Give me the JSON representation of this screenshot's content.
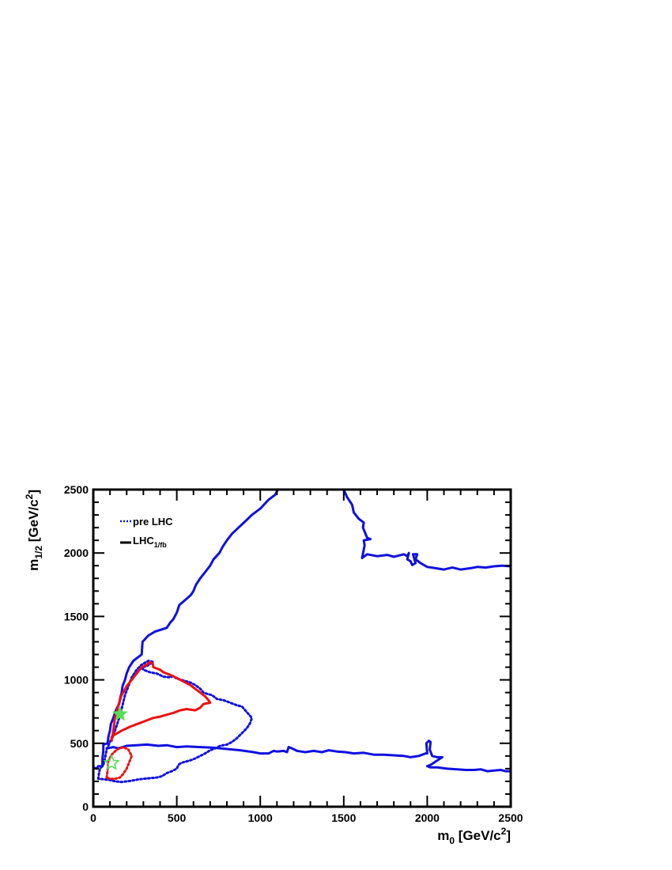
{
  "chart_data": {
    "type": "line",
    "xlabel": {
      "main": "m",
      "sub": "0",
      "unit": " [GeV/c",
      "sup": "2",
      "close": "]"
    },
    "ylabel": {
      "main": "m",
      "sub": "1/2",
      "unit": " [GeV/c",
      "sup": "2",
      "close": "]"
    },
    "xlim": [
      0,
      2500
    ],
    "ylim": [
      0,
      2500
    ],
    "xticks": [
      0,
      500,
      1000,
      1500,
      2000,
      2500
    ],
    "yticks": [
      0,
      500,
      1000,
      1500,
      2000,
      2500
    ],
    "grid": false,
    "legend_position": "top-left",
    "legend": [
      {
        "label_main": "pre LHC",
        "label_sub": "",
        "style": "dotted"
      },
      {
        "label_main": "LHC",
        "label_sub": "1/fb",
        "style": "solid"
      }
    ],
    "colors": {
      "blue": "#1010e0",
      "red": "#ee1010",
      "green": "#55dd55",
      "frame": "#000000"
    },
    "series": [
      {
        "style": "solid",
        "color": "#1010e0",
        "points": [
          [
            0,
            310
          ],
          [
            20,
            300
          ],
          [
            30,
            320
          ],
          [
            55,
            320
          ],
          [
            55,
            380
          ],
          [
            60,
            440
          ],
          [
            60,
            490
          ],
          [
            85,
            500
          ],
          [
            92,
            560
          ],
          [
            100,
            600
          ],
          [
            105,
            650
          ],
          [
            120,
            700
          ],
          [
            135,
            760
          ],
          [
            155,
            810
          ],
          [
            160,
            850
          ],
          [
            170,
            900
          ],
          [
            175,
            950
          ],
          [
            190,
            1000
          ],
          [
            200,
            1050
          ],
          [
            215,
            1100
          ],
          [
            240,
            1150
          ],
          [
            270,
            1180
          ],
          [
            290,
            1200
          ],
          [
            295,
            1300
          ],
          [
            330,
            1350
          ],
          [
            370,
            1380
          ],
          [
            440,
            1410
          ],
          [
            460,
            1450
          ],
          [
            480,
            1480
          ],
          [
            500,
            1530
          ],
          [
            515,
            1590
          ],
          [
            560,
            1640
          ],
          [
            585,
            1670
          ],
          [
            600,
            1700
          ],
          [
            615,
            1750
          ],
          [
            640,
            1800
          ],
          [
            670,
            1850
          ],
          [
            700,
            1900
          ],
          [
            720,
            1950
          ],
          [
            755,
            2000
          ],
          [
            775,
            2050
          ],
          [
            800,
            2100
          ],
          [
            830,
            2150
          ],
          [
            870,
            2200
          ],
          [
            910,
            2250
          ],
          [
            950,
            2300
          ],
          [
            1000,
            2350
          ],
          [
            1050,
            2420
          ],
          [
            1090,
            2460
          ],
          [
            1105,
            2500
          ]
        ]
      },
      {
        "style": "solid",
        "color": "#1010e0",
        "points": [
          [
            1500,
            2500
          ],
          [
            1520,
            2440
          ],
          [
            1550,
            2380
          ],
          [
            1560,
            2320
          ],
          [
            1590,
            2270
          ],
          [
            1620,
            2240
          ],
          [
            1615,
            2200
          ],
          [
            1640,
            2120
          ],
          [
            1660,
            2110
          ],
          [
            1620,
            2100
          ],
          [
            1625,
            2060
          ],
          [
            1610,
            1960
          ],
          [
            1640,
            1990
          ],
          [
            1700,
            1975
          ],
          [
            1760,
            1985
          ],
          [
            1800,
            1970
          ],
          [
            1860,
            1990
          ],
          [
            1880,
            1975
          ],
          [
            1890,
            2000
          ],
          [
            1880,
            1950
          ],
          [
            1900,
            1935
          ],
          [
            1910,
            1905
          ],
          [
            1930,
            1920
          ],
          [
            1915,
            1990
          ],
          [
            1940,
            1990
          ],
          [
            1930,
            1950
          ],
          [
            1960,
            1920
          ],
          [
            2000,
            1890
          ],
          [
            2050,
            1880
          ],
          [
            2100,
            1870
          ],
          [
            2150,
            1885
          ],
          [
            2200,
            1870
          ],
          [
            2260,
            1880
          ],
          [
            2300,
            1890
          ],
          [
            2350,
            1885
          ],
          [
            2400,
            1895
          ],
          [
            2450,
            1900
          ],
          [
            2500,
            1895
          ]
        ]
      },
      {
        "style": "solid",
        "color": "#1010e0",
        "points": [
          [
            80,
            460
          ],
          [
            120,
            470
          ],
          [
            150,
            460
          ],
          [
            200,
            480
          ],
          [
            260,
            485
          ],
          [
            320,
            490
          ],
          [
            390,
            480
          ],
          [
            440,
            485
          ],
          [
            500,
            470
          ],
          [
            560,
            475
          ],
          [
            640,
            470
          ],
          [
            720,
            465
          ],
          [
            800,
            455
          ],
          [
            880,
            445
          ],
          [
            960,
            430
          ],
          [
            1000,
            420
          ],
          [
            1050,
            420
          ],
          [
            1080,
            440
          ],
          [
            1100,
            435
          ],
          [
            1140,
            440
          ],
          [
            1160,
            430
          ],
          [
            1170,
            470
          ],
          [
            1190,
            460
          ],
          [
            1220,
            440
          ],
          [
            1270,
            430
          ],
          [
            1320,
            440
          ],
          [
            1370,
            430
          ],
          [
            1410,
            445
          ],
          [
            1460,
            435
          ],
          [
            1510,
            430
          ],
          [
            1560,
            420
          ],
          [
            1620,
            425
          ],
          [
            1680,
            410
          ],
          [
            1740,
            410
          ],
          [
            1800,
            405
          ],
          [
            1860,
            400
          ],
          [
            1900,
            390
          ],
          [
            1950,
            400
          ],
          [
            1990,
            420
          ],
          [
            2000,
            420
          ],
          [
            1995,
            500
          ],
          [
            2010,
            520
          ],
          [
            2020,
            510
          ],
          [
            2015,
            450
          ],
          [
            2030,
            400
          ],
          [
            2060,
            390
          ],
          [
            2090,
            390
          ],
          [
            2020,
            330
          ],
          [
            2000,
            320
          ],
          [
            2020,
            310
          ],
          [
            2060,
            310
          ],
          [
            2120,
            300
          ],
          [
            2180,
            295
          ],
          [
            2230,
            290
          ],
          [
            2280,
            290
          ],
          [
            2320,
            295
          ],
          [
            2360,
            280
          ],
          [
            2400,
            285
          ],
          [
            2440,
            290
          ],
          [
            2470,
            280
          ],
          [
            2500,
            280
          ]
        ]
      },
      {
        "style": "dotted",
        "color": "#1010e0",
        "points": [
          [
            30,
            220
          ],
          [
            35,
            270
          ],
          [
            40,
            300
          ],
          [
            60,
            330
          ],
          [
            70,
            380
          ],
          [
            80,
            450
          ],
          [
            100,
            510
          ],
          [
            120,
            560
          ],
          [
            140,
            640
          ],
          [
            160,
            720
          ],
          [
            175,
            800
          ],
          [
            190,
            880
          ],
          [
            210,
            950
          ],
          [
            230,
            1020
          ],
          [
            260,
            1080
          ],
          [
            290,
            1120
          ],
          [
            330,
            1150
          ],
          [
            360,
            1140
          ],
          [
            320,
            1110
          ],
          [
            290,
            1095
          ],
          [
            300,
            1080
          ],
          [
            340,
            1060
          ],
          [
            380,
            1050
          ],
          [
            420,
            1025
          ],
          [
            460,
            1020
          ],
          [
            480,
            1030
          ],
          [
            500,
            1010
          ],
          [
            540,
            995
          ],
          [
            580,
            980
          ],
          [
            610,
            960
          ],
          [
            640,
            930
          ],
          [
            660,
            900
          ],
          [
            680,
            890
          ],
          [
            710,
            880
          ],
          [
            740,
            850
          ],
          [
            780,
            840
          ],
          [
            820,
            820
          ],
          [
            860,
            800
          ],
          [
            890,
            790
          ],
          [
            910,
            760
          ],
          [
            930,
            730
          ],
          [
            950,
            700
          ],
          [
            940,
            660
          ],
          [
            920,
            620
          ],
          [
            890,
            580
          ],
          [
            860,
            540
          ],
          [
            830,
            510
          ],
          [
            800,
            490
          ],
          [
            760,
            480
          ],
          [
            730,
            460
          ],
          [
            700,
            445
          ],
          [
            670,
            420
          ],
          [
            640,
            400
          ],
          [
            610,
            380
          ],
          [
            580,
            365
          ],
          [
            550,
            355
          ],
          [
            525,
            345
          ],
          [
            510,
            330
          ],
          [
            500,
            300
          ],
          [
            470,
            280
          ],
          [
            440,
            265
          ],
          [
            410,
            240
          ],
          [
            380,
            230
          ],
          [
            340,
            225
          ],
          [
            300,
            220
          ],
          [
            270,
            215
          ],
          [
            230,
            205
          ],
          [
            200,
            200
          ],
          [
            170,
            195
          ],
          [
            130,
            200
          ],
          [
            100,
            210
          ],
          [
            70,
            215
          ],
          [
            50,
            218
          ],
          [
            30,
            220
          ]
        ]
      },
      {
        "style": "solid",
        "color": "#ee1010",
        "points": [
          [
            110,
            520
          ],
          [
            120,
            600
          ],
          [
            130,
            700
          ],
          [
            150,
            800
          ],
          [
            170,
            880
          ],
          [
            200,
            950
          ],
          [
            230,
            1000
          ],
          [
            260,
            1050
          ],
          [
            290,
            1100
          ],
          [
            320,
            1120
          ],
          [
            340,
            1140
          ],
          [
            355,
            1130
          ],
          [
            360,
            1100
          ],
          [
            400,
            1080
          ],
          [
            420,
            1060
          ],
          [
            460,
            1040
          ],
          [
            500,
            1015
          ],
          [
            550,
            980
          ],
          [
            580,
            960
          ],
          [
            610,
            930
          ],
          [
            640,
            900
          ],
          [
            670,
            870
          ],
          [
            690,
            840
          ],
          [
            700,
            820
          ],
          [
            660,
            810
          ],
          [
            640,
            780
          ],
          [
            610,
            760
          ],
          [
            560,
            770
          ],
          [
            520,
            760
          ],
          [
            480,
            740
          ],
          [
            440,
            725
          ],
          [
            400,
            710
          ],
          [
            360,
            700
          ],
          [
            320,
            680
          ],
          [
            260,
            650
          ],
          [
            220,
            630
          ],
          [
            170,
            600
          ],
          [
            130,
            570
          ],
          [
            110,
            550
          ],
          [
            110,
            520
          ]
        ]
      },
      {
        "style": "dotted",
        "color": "#ee1010",
        "points": [
          [
            80,
            230
          ],
          [
            85,
            280
          ],
          [
            90,
            360
          ],
          [
            110,
            410
          ],
          [
            140,
            450
          ],
          [
            180,
            470
          ],
          [
            210,
            450
          ],
          [
            230,
            400
          ],
          [
            215,
            350
          ],
          [
            200,
            300
          ],
          [
            180,
            260
          ],
          [
            160,
            230
          ],
          [
            130,
            220
          ],
          [
            100,
            220
          ],
          [
            80,
            230
          ]
        ]
      }
    ],
    "markers": [
      {
        "type": "star",
        "filled": true,
        "color": "#55dd55",
        "x": 160,
        "y": 730
      },
      {
        "type": "star",
        "filled": false,
        "color": "#55dd55",
        "x": 110,
        "y": 345
      }
    ]
  }
}
